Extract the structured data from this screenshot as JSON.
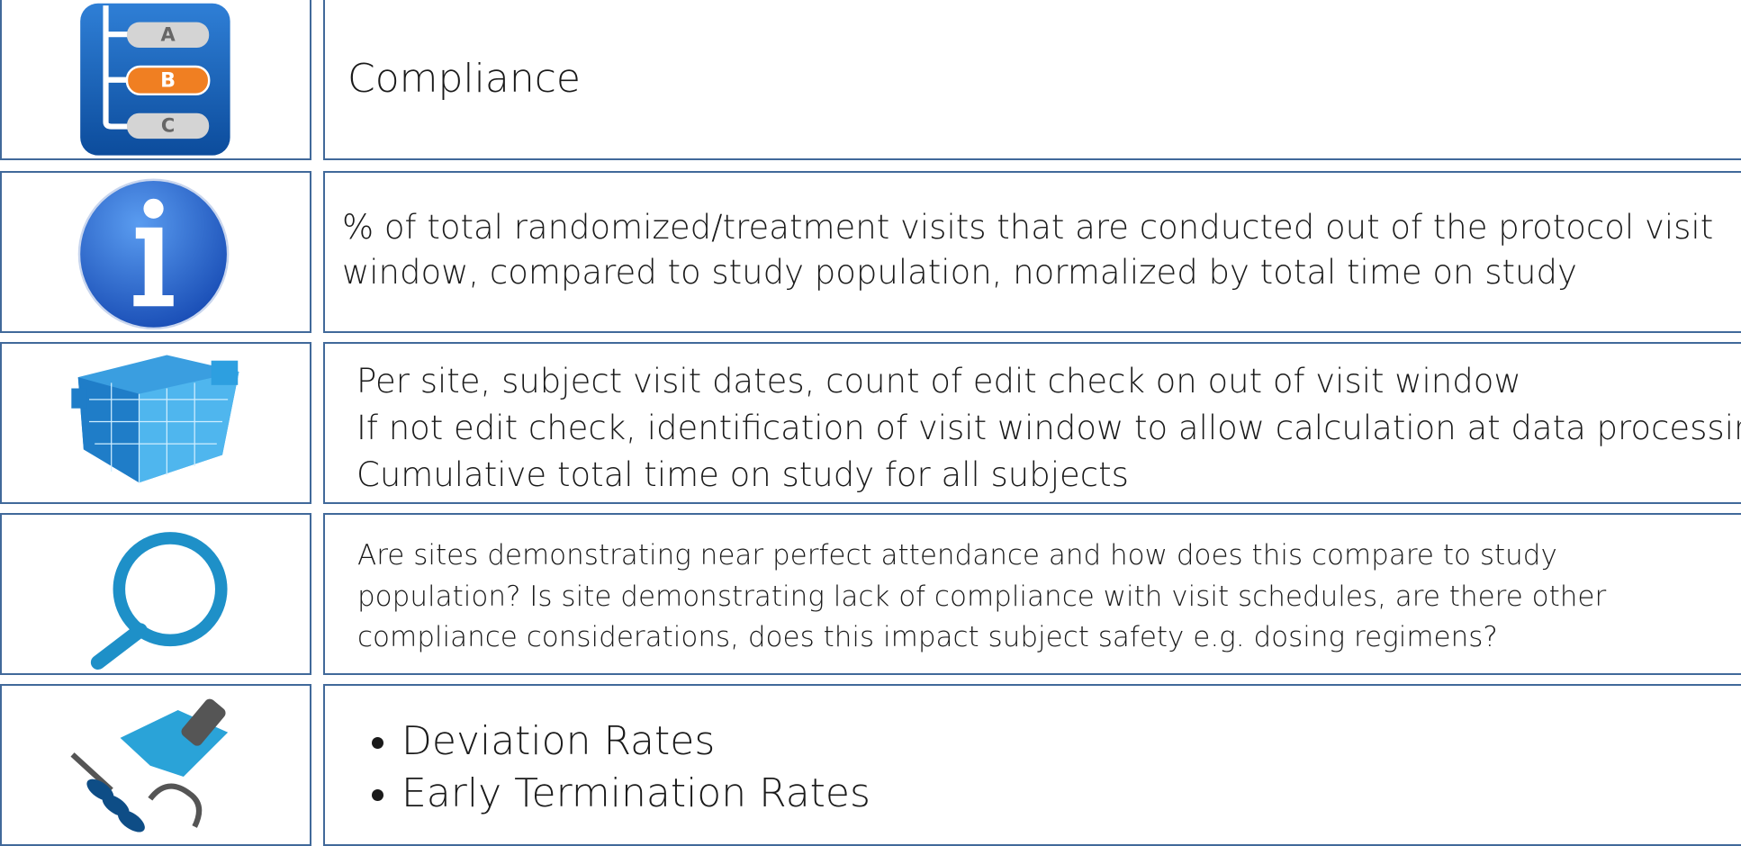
{
  "icon_labels": [
    "A",
    "B",
    "C"
  ],
  "rows": [
    {
      "lines": [
        "Compliance"
      ]
    },
    {
      "lines": [
        "% of total randomized/treatment visits that are conducted out of the protocol visit",
        "window, compared to study population, normalized by total time on study"
      ]
    },
    {
      "lines": [
        "Per site, subject visit dates, count of edit check on out of visit window",
        "If not edit check, identification of visit window to allow calculation at data processing",
        "Cumulative total time on study for all subjects"
      ]
    },
    {
      "lines": [
        "Are sites demonstrating near perfect attendance and how does this compare to study",
        "population? Is site demonstrating lack of compliance with visit schedules, are there other",
        "compliance considerations, does this impact subject safety e.g. dosing regimens?"
      ]
    },
    {
      "bullets": [
        "Deviation Rates",
        "Early Termination Rates"
      ]
    }
  ]
}
